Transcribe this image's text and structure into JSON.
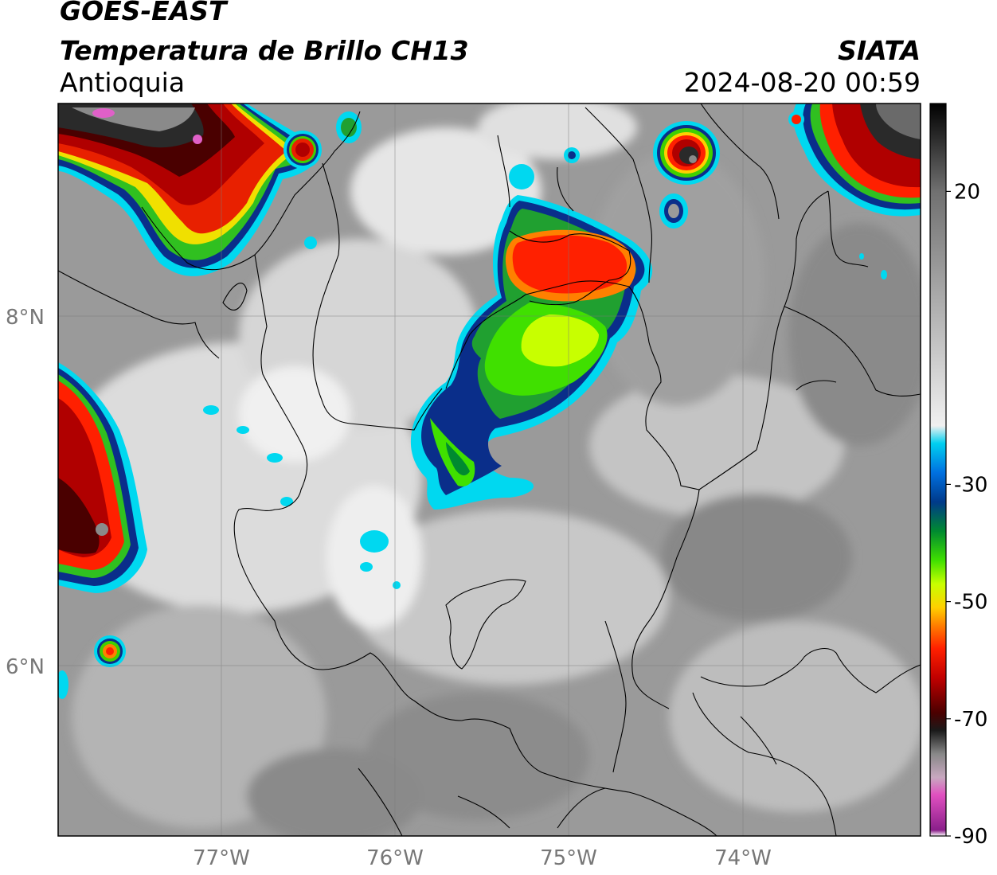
{
  "header": {
    "satellite": "GOES-EAST",
    "product": "Temperatura de Brillo CH13",
    "region": "Antioquia",
    "organization": "SIATA",
    "datetime": "2024-08-20 00:59"
  },
  "map": {
    "lat_range": [
      5.0,
      9.2
    ],
    "lon_range": [
      -77.95,
      -73.0
    ],
    "latitude_labels": [
      {
        "value": 8,
        "label": "8°N"
      },
      {
        "value": 6,
        "label": "6°N"
      }
    ],
    "longitude_labels": [
      {
        "value": -77,
        "label": "77°W"
      },
      {
        "value": -76,
        "label": "76°W"
      },
      {
        "value": -75,
        "label": "75°W"
      },
      {
        "value": -74,
        "label": "74°W"
      }
    ],
    "gridlines": true
  },
  "colorbar": {
    "range": [
      -90,
      35
    ],
    "ticks": [
      {
        "value": 20,
        "label": "20"
      },
      {
        "value": -30,
        "label": "-30"
      },
      {
        "value": -50,
        "label": "-50"
      },
      {
        "value": -70,
        "label": "-70"
      },
      {
        "value": -90,
        "label": "-90"
      }
    ],
    "stops": [
      {
        "value": -90,
        "color": "#ffffff"
      },
      {
        "value": -89,
        "color": "#8a1f8a"
      },
      {
        "value": -83,
        "color": "#e050c0"
      },
      {
        "value": -80,
        "color": "#c8a8c0"
      },
      {
        "value": -76,
        "color": "#888888"
      },
      {
        "value": -72,
        "color": "#1a1a1a"
      },
      {
        "value": -69,
        "color": "#4a0000"
      },
      {
        "value": -63,
        "color": "#c00000"
      },
      {
        "value": -58,
        "color": "#ff2000"
      },
      {
        "value": -54,
        "color": "#ff8000"
      },
      {
        "value": -51,
        "color": "#ffd000"
      },
      {
        "value": -47,
        "color": "#c8ff00"
      },
      {
        "value": -43,
        "color": "#40e000"
      },
      {
        "value": -38,
        "color": "#008a30"
      },
      {
        "value": -33,
        "color": "#003a8a"
      },
      {
        "value": -28,
        "color": "#0070e0"
      },
      {
        "value": -23,
        "color": "#00d0f0"
      },
      {
        "value": -20,
        "color": "#f0f0f0"
      },
      {
        "value": 0,
        "color": "#b0b0b0"
      },
      {
        "value": 20,
        "color": "#707070"
      },
      {
        "value": 35,
        "color": "#000000"
      }
    ]
  }
}
